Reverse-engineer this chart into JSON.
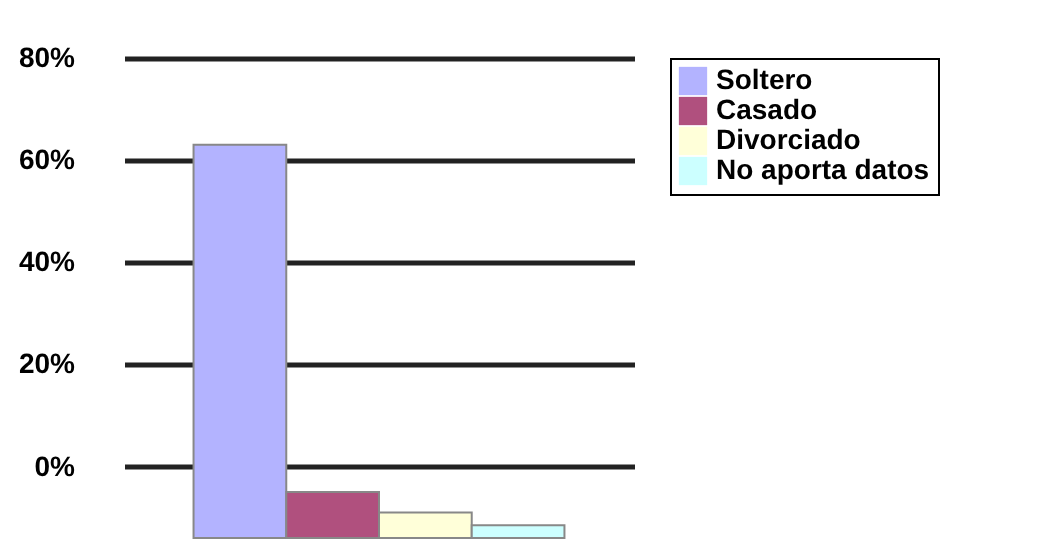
{
  "chart_data": {
    "type": "bar",
    "categories": [
      null
    ],
    "series": [
      {
        "name": "Soltero",
        "color": "#b3b3ff",
        "values": [
          77
        ],
        "base": [
          -14
        ]
      },
      {
        "name": "Casado",
        "color": "#b0507e",
        "values": [
          9
        ],
        "base": [
          -14
        ]
      },
      {
        "name": "Divorciado",
        "color": "#ffffd9",
        "values": [
          5
        ],
        "base": [
          -14
        ]
      },
      {
        "name": "No aporta datos",
        "color": "#ccffff",
        "values": [
          2.5
        ],
        "base": [
          -14
        ]
      }
    ],
    "ylim": [
      -14,
      80
    ],
    "yticks": [
      {
        "value": 0,
        "label": "0%"
      },
      {
        "value": 20,
        "label": "20%"
      },
      {
        "value": 40,
        "label": "40%"
      },
      {
        "value": 60,
        "label": "60%"
      },
      {
        "value": 80,
        "label": "80%"
      }
    ],
    "grid": "y",
    "legend": "top right"
  }
}
